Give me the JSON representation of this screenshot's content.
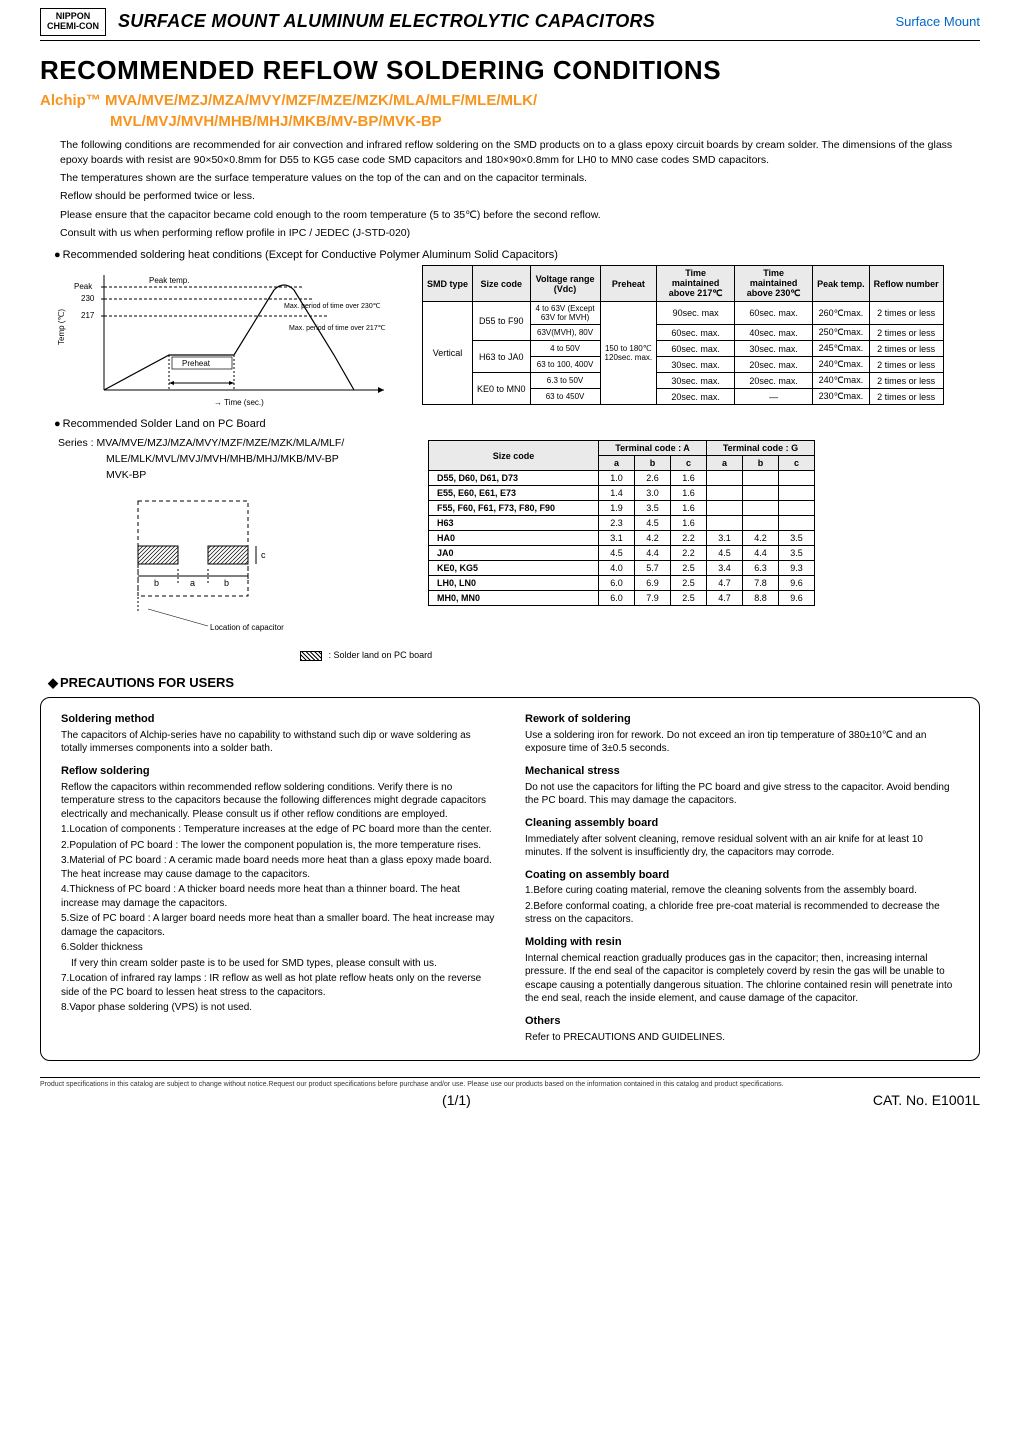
{
  "header": {
    "logo_line1": "NIPPON",
    "logo_line2": "CHEMI-CON",
    "title": "SURFACE MOUNT ALUMINUM ELECTROLYTIC CAPACITORS",
    "right": "Surface Mount"
  },
  "main_title": "RECOMMENDED REFLOW SOLDERING CONDITIONS",
  "subtitle_l1": "Alchip™ MVA/MVE/MZJ/MZA/MVY/MZF/MZE/MZK/MLA/MLF/MLE/MLK/",
  "subtitle_l2": "MVL/MVJ/MVH/MHB/MHJ/MKB/MV-BP/MVK-BP",
  "intro": {
    "p1": "The following conditions are recommended for air convection and infrared reflow soldering on the SMD products on to a glass epoxy circuit boards by cream solder. The dimensions of the glass epoxy boards with resist are 90×50×0.8mm for D55 to KG5 case code SMD capacitors and 180×90×0.8mm for LH0 to MN0 case codes SMD capacitors.",
    "p2": "The temperatures shown are the surface temperature values on the top of the can and on the capacitor terminals.",
    "p3": "Reflow should be performed twice or less.",
    "p4": "Please ensure that the capacitor became cold enough to the room temperature (5 to 35℃) before the second reflow.",
    "p5": "Consult with us when performing reflow profile in IPC / JEDEC (J-STD-020)"
  },
  "heat_section": "Recommended soldering heat conditions (Except for Conductive Polymer Aluminum Solid Capacitors)",
  "chart": {
    "y_labels": [
      "Peak",
      "230",
      "217"
    ],
    "axis_y": "Temp (℃)",
    "axis_x": "Time (sec.)",
    "label_peak": "Peak temp.",
    "label_over230": "Max. period of time over 230℃",
    "label_over217": "Max. period of time over 217℃",
    "label_preheat": "Preheat"
  },
  "table1": {
    "headers": [
      "SMD type",
      "Size code",
      "Voltage range (Vdc)",
      "Preheat",
      "Time maintained above 217℃",
      "Time maintained above 230℃",
      "Peak temp.",
      "Reflow number"
    ],
    "smd_type": "Vertical",
    "rows": [
      {
        "size": "D55 to F90",
        "volt": "4 to 63V (Except 63V for MVH)",
        "preheat": "",
        "t217": "90sec. max",
        "t230": "60sec. max.",
        "peak": "260℃max.",
        "reflow": "2 times or less"
      },
      {
        "size": "",
        "volt": "63V(MVH), 80V",
        "preheat": "150 to 180℃ 120sec. max.",
        "t217": "60sec. max.",
        "t230": "40sec. max.",
        "peak": "250℃max.",
        "reflow": "2 times or less"
      },
      {
        "size": "H63 to JA0",
        "volt": "4 to 50V",
        "preheat": "",
        "t217": "60sec. max.",
        "t230": "30sec. max.",
        "peak": "245℃max.",
        "reflow": "2 times or less"
      },
      {
        "size": "",
        "volt": "63 to 100, 400V",
        "preheat": "",
        "t217": "30sec. max.",
        "t230": "20sec. max.",
        "peak": "240℃max.",
        "reflow": "2 times or less"
      },
      {
        "size": "KE0 to MN0",
        "volt": "6.3 to 50V",
        "preheat": "",
        "t217": "30sec. max.",
        "t230": "20sec. max.",
        "peak": "240℃max.",
        "reflow": "2 times or less"
      },
      {
        "size": "",
        "volt": "63 to 450V",
        "preheat": "",
        "t217": "20sec. max.",
        "t230": "—",
        "peak": "230℃max.",
        "reflow": "2 times or less"
      }
    ]
  },
  "land_section": "Recommended Solder Land on PC Board",
  "series_label": "Series : MVA/MVE/MZJ/MZA/MVY/MZF/MZE/MZK/MLA/MLF/",
  "series_l2": "MLE/MLK/MVL/MVJ/MVH/MHB/MHJ/MKB/MV-BP",
  "series_l3": "MVK-BP",
  "diagram": {
    "a": "a",
    "b": "b",
    "c": "c",
    "loc": "Location of capacitor"
  },
  "legend": ": Solder land on PC board",
  "table2": {
    "h_size": "Size code",
    "h_ta": "Terminal code : A",
    "h_tg": "Terminal code : G",
    "cols": [
      "a",
      "b",
      "c",
      "a",
      "b",
      "c"
    ],
    "rows": [
      {
        "name": "D55, D60, D61, D73",
        "v": [
          "1.0",
          "2.6",
          "1.6",
          "",
          "",
          ""
        ]
      },
      {
        "name": "E55, E60, E61, E73",
        "v": [
          "1.4",
          "3.0",
          "1.6",
          "",
          "",
          ""
        ]
      },
      {
        "name": "F55, F60, F61, F73, F80, F90",
        "v": [
          "1.9",
          "3.5",
          "1.6",
          "",
          "",
          ""
        ]
      },
      {
        "name": "H63",
        "v": [
          "2.3",
          "4.5",
          "1.6",
          "",
          "",
          ""
        ]
      },
      {
        "name": "HA0",
        "v": [
          "3.1",
          "4.2",
          "2.2",
          "3.1",
          "4.2",
          "3.5"
        ]
      },
      {
        "name": "JA0",
        "v": [
          "4.5",
          "4.4",
          "2.2",
          "4.5",
          "4.4",
          "3.5"
        ]
      },
      {
        "name": "KE0, KG5",
        "v": [
          "4.0",
          "5.7",
          "2.5",
          "3.4",
          "6.3",
          "9.3"
        ]
      },
      {
        "name": "LH0, LN0",
        "v": [
          "6.0",
          "6.9",
          "2.5",
          "4.7",
          "7.8",
          "9.6"
        ]
      },
      {
        "name": "MH0, MN0",
        "v": [
          "6.0",
          "7.9",
          "2.5",
          "4.7",
          "8.8",
          "9.6"
        ]
      }
    ]
  },
  "precautions_title": "PRECAUTIONS FOR USERS",
  "left": {
    "h1": "Soldering method",
    "p1": "The capacitors of Alchip-series have no capability to withstand such dip or wave soldering as totally immerses components into a solder bath.",
    "h2": "Reflow soldering",
    "p2": "Reflow the capacitors within recommended reflow soldering conditions. Verify there is no temperature stress to the capacitors because the following differences might degrade capacitors electrically and mechanically. Please consult us if other reflow conditions are employed.",
    "li1": "1.Location of components : Temperature increases at the edge of PC board more than the center.",
    "li2": "2.Population of PC board : The lower the component population is, the more temperature rises.",
    "li3": "3.Material of PC board : A ceramic made board needs more heat than a glass epoxy made board. The heat increase may cause damage to the capacitors.",
    "li4": "4.Thickness of PC board : A thicker board needs more heat than a thinner board. The heat increase may damage the capacitors.",
    "li5": "5.Size of PC board : A larger board needs more heat than a smaller board. The heat increase may damage the capacitors.",
    "li6": "6.Solder thickness",
    "li6b": "If very thin cream solder paste is to be used for SMD types, please consult with us.",
    "li7": "7.Location of infrared ray lamps : IR reflow as well as hot plate reflow heats only on the reverse side of the PC board to lessen heat stress to the capacitors.",
    "li8": "8.Vapor phase soldering (VPS) is not used."
  },
  "right": {
    "h1": "Rework of soldering",
    "p1": "Use a soldering iron for rework. Do not exceed an iron tip temperature of 380±10℃ and an exposure time of 3±0.5 seconds.",
    "h2": "Mechanical stress",
    "p2": "Do not use the capacitors for lifting the PC board and give stress to the capacitor. Avoid bending the PC board. This may damage the capacitors.",
    "h3": "Cleaning assembly board",
    "p3": "Immediately after solvent cleaning, remove residual solvent with an air knife for at least 10 minutes. If the solvent is insufficiently dry, the capacitors may corrode.",
    "h4": "Coating on assembly board",
    "p4a": "1.Before curing coating material, remove the cleaning solvents from the assembly board.",
    "p4b": "2.Before conformal coating, a chloride free pre-coat material is recommended to decrease the stress on the capacitors.",
    "h5": "Molding with resin",
    "p5": "Internal chemical reaction gradually produces gas in the capacitor; then, increasing internal pressure. If the end seal of the capacitor is completely coverd by resin the gas will be unable to escape causing a potentially dangerous situation. The chlorine contained resin will penetrate into the end seal, reach the inside element, and cause damage of the capacitor.",
    "h6": "Others",
    "p6": "Refer to PRECAUTIONS AND GUIDELINES."
  },
  "footer": {
    "disclaimer": "Product specifications in this catalog are subject to change without notice.Request our product specifications before purchase and/or use. Please use our products based on the information contained in this catalog and product specifications.",
    "page": "(1/1)",
    "cat": "CAT. No. E1001L"
  }
}
